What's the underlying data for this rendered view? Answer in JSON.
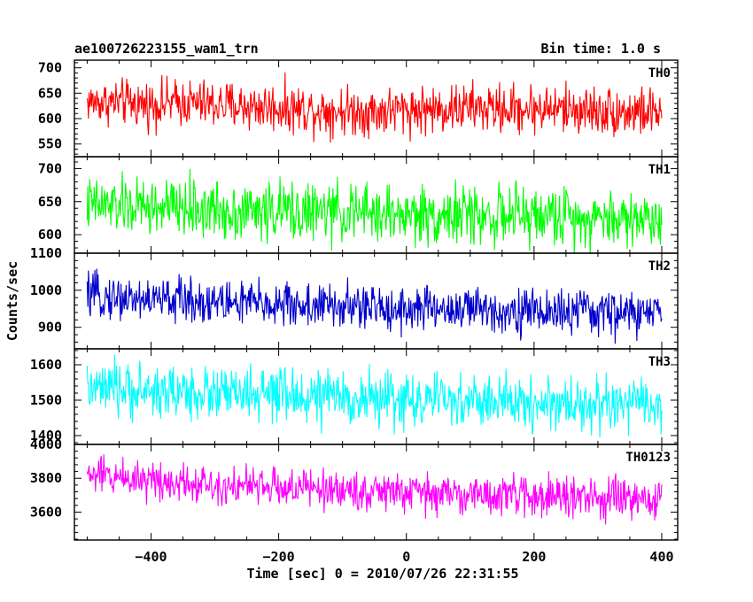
{
  "header": {
    "left_title": "ae100726223155_wam1_trn",
    "right_title": "Bin time: 1.0 s"
  },
  "chart_data": {
    "type": "line",
    "title": "ae100726223155_wam1_trn",
    "bin_time_label": "Bin time: 1.0 s",
    "xlabel": "Time [sec] 0 = 2010/07/26 22:31:55",
    "ylabel": "Counts/sec",
    "xlim": [
      -520,
      425
    ],
    "x_ticks": [
      -400,
      -200,
      0,
      200,
      400
    ],
    "x_tick_labels": [
      "−400",
      "−200",
      "0",
      "200",
      "400"
    ],
    "data_x_range": [
      -500,
      400
    ],
    "grid": false,
    "legend": "none",
    "panels": [
      {
        "name": "TH0",
        "color": "#ff0000",
        "ylim": [
          525,
          715
        ],
        "y_ticks": [
          550,
          600,
          650,
          700
        ],
        "y_tick_labels": [
          "550",
          "600",
          "650",
          "700"
        ],
        "series": [
          {
            "name": "TH0",
            "x": [
              -500,
              -450,
              -400,
              -350,
              -300,
              -250,
              -200,
              -150,
              -100,
              -50,
              0,
              50,
              100,
              150,
              200,
              250,
              300,
              350,
              400
            ],
            "values": [
              633,
              632,
              628,
              632,
              627,
              624,
              622,
              618,
              616,
              614,
              618,
              618,
              622,
              618,
              620,
              618,
              616,
              613,
              612
            ],
            "band": [
              20,
              22,
              23,
              23,
              24,
              24,
              24,
              24,
              24,
              24,
              24,
              24,
              24,
              24,
              24,
              24,
              24,
              24,
              24
            ],
            "extremes": [
              700,
              555
            ]
          }
        ]
      },
      {
        "name": "TH1",
        "color": "#00ff00",
        "ylim": [
          572,
          718
        ],
        "y_ticks": [
          600,
          650,
          700
        ],
        "y_tick_labels": [
          "600",
          "650",
          "700"
        ],
        "series": [
          {
            "name": "TH1",
            "x": [
              -500,
              -450,
              -400,
              -350,
              -300,
              -250,
              -200,
              -150,
              -100,
              -50,
              0,
              50,
              100,
              150,
              200,
              250,
              300,
              350,
              400
            ],
            "values": [
              645,
              643,
              641,
              640,
              637,
              636,
              636,
              634,
              633,
              632,
              630,
              630,
              630,
              628,
              628,
              628,
              626,
              625,
              624
            ],
            "band": [
              20,
              21,
              22,
              22,
              22,
              22,
              22,
              22,
              22,
              22,
              22,
              22,
              22,
              22,
              22,
              22,
              22,
              22,
              22
            ],
            "extremes": [
              705,
              585
            ]
          }
        ]
      },
      {
        "name": "TH2",
        "color": "#0000cc",
        "ylim": [
          842,
          1100
        ],
        "y_ticks": [
          900,
          1000,
          1100
        ],
        "y_tick_labels": [
          "900",
          "1000",
          "1100"
        ],
        "series": [
          {
            "name": "TH2",
            "x": [
              -500,
              -450,
              -400,
              -350,
              -300,
              -250,
              -200,
              -150,
              -100,
              -50,
              0,
              50,
              100,
              150,
              200,
              250,
              300,
              350,
              400
            ],
            "values": [
              985,
              980,
              975,
              975,
              968,
              966,
              962,
              958,
              955,
              953,
              950,
              950,
              948,
              946,
              943,
              942,
              940,
              938,
              936
            ],
            "band": [
              28,
              29,
              30,
              30,
              31,
              31,
              31,
              31,
              31,
              31,
              31,
              31,
              31,
              31,
              31,
              31,
              31,
              31,
              31
            ],
            "extremes": [
              1095,
              855
            ]
          }
        ]
      },
      {
        "name": "TH3",
        "color": "#00ffff",
        "ylim": [
          1375,
          1645
        ],
        "y_ticks": [
          1400,
          1500,
          1600
        ],
        "y_tick_labels": [
          "1400",
          "1500",
          "1600"
        ],
        "series": [
          {
            "name": "TH3",
            "x": [
              -500,
              -450,
              -400,
              -350,
              -300,
              -250,
              -200,
              -150,
              -100,
              -50,
              0,
              50,
              100,
              150,
              200,
              250,
              300,
              350,
              400
            ],
            "values": [
              1530,
              1528,
              1525,
              1522,
              1518,
              1515,
              1512,
              1510,
              1506,
              1504,
              1500,
              1498,
              1496,
              1494,
              1492,
              1490,
              1488,
              1486,
              1485
            ],
            "band": [
              36,
              37,
              38,
              38,
              38,
              38,
              38,
              38,
              38,
              38,
              38,
              38,
              38,
              38,
              38,
              38,
              38,
              38,
              38
            ],
            "extremes": [
              1640,
              1390
            ]
          }
        ]
      },
      {
        "name": "TH0123",
        "color": "#ff00ff",
        "ylim": [
          3435,
          4000
        ],
        "y_ticks": [
          3600,
          3800,
          4000
        ],
        "y_tick_labels": [
          "3600",
          "3800",
          "4000"
        ],
        "series": [
          {
            "name": "TH0123",
            "x": [
              -500,
              -450,
              -400,
              -350,
              -300,
              -250,
              -200,
              -150,
              -100,
              -50,
              0,
              50,
              100,
              150,
              200,
              250,
              300,
              350,
              400
            ],
            "values": [
              3820,
              3810,
              3795,
              3780,
              3765,
              3755,
              3745,
              3738,
              3730,
              3722,
              3712,
              3708,
              3705,
              3700,
              3695,
              3690,
              3680,
              3672,
              3665
            ],
            "band": [
              55,
              56,
              58,
              58,
              58,
              58,
              58,
              58,
              58,
              58,
              58,
              58,
              58,
              58,
              58,
              58,
              58,
              58,
              58
            ],
            "extremes": [
              3960,
              3450
            ]
          }
        ]
      }
    ]
  }
}
